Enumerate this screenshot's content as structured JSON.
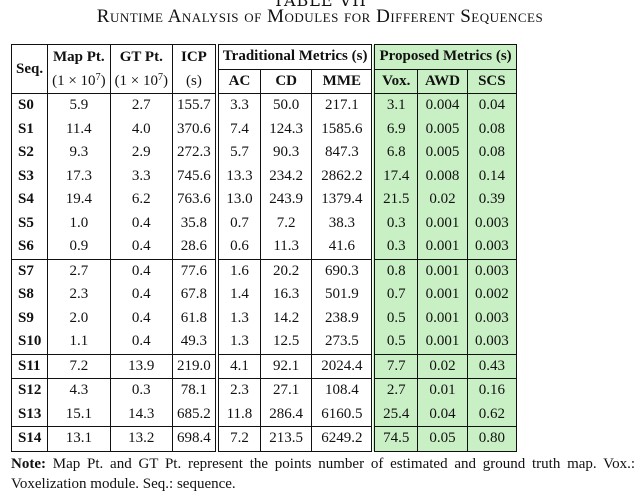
{
  "table_label": "TABLE VII",
  "caption": "Runtime Analysis of Modules for Different Sequences",
  "headers": {
    "seq": "Seq.",
    "map_pt": "Map Pt.",
    "map_pt_unit": "(1 × 10",
    "gt_pt": "GT Pt.",
    "gt_pt_unit": "(1 × 10",
    "exp": "7",
    "close": ")",
    "icp": "ICP",
    "icp_unit": "(s)",
    "traditional": "Traditional Metrics (s)",
    "ac": "AC",
    "cd": "CD",
    "mme": "MME",
    "proposed": "Proposed Metrics (s)",
    "vox": "Vox.",
    "awd": "AWD",
    "scs": "SCS"
  },
  "rows": [
    [
      "S0",
      "5.9",
      "2.7",
      "155.7",
      "3.3",
      "50.0",
      "217.1",
      "3.1",
      "0.004",
      "0.04"
    ],
    [
      "S1",
      "11.4",
      "4.0",
      "370.6",
      "7.4",
      "124.3",
      "1585.6",
      "6.9",
      "0.005",
      "0.08"
    ],
    [
      "S2",
      "9.3",
      "2.9",
      "272.3",
      "5.7",
      "90.3",
      "847.3",
      "6.8",
      "0.005",
      "0.08"
    ],
    [
      "S3",
      "17.3",
      "3.3",
      "745.6",
      "13.3",
      "234.2",
      "2862.2",
      "17.4",
      "0.008",
      "0.14"
    ],
    [
      "S4",
      "19.4",
      "6.2",
      "763.6",
      "13.0",
      "243.9",
      "1379.4",
      "21.5",
      "0.02",
      "0.39"
    ],
    [
      "S5",
      "1.0",
      "0.4",
      "35.8",
      "0.7",
      "7.2",
      "38.3",
      "0.3",
      "0.001",
      "0.003"
    ],
    [
      "S6",
      "0.9",
      "0.4",
      "28.6",
      "0.6",
      "11.3",
      "41.6",
      "0.3",
      "0.001",
      "0.003"
    ],
    [
      "S7",
      "2.7",
      "0.4",
      "77.6",
      "1.6",
      "20.2",
      "690.3",
      "0.8",
      "0.001",
      "0.003"
    ],
    [
      "S8",
      "2.3",
      "0.4",
      "67.8",
      "1.4",
      "16.3",
      "501.9",
      "0.7",
      "0.001",
      "0.002"
    ],
    [
      "S9",
      "2.0",
      "0.4",
      "61.8",
      "1.3",
      "14.2",
      "238.9",
      "0.5",
      "0.001",
      "0.003"
    ],
    [
      "S10",
      "1.1",
      "0.4",
      "49.3",
      "1.3",
      "12.5",
      "273.5",
      "0.5",
      "0.001",
      "0.003"
    ],
    [
      "S11",
      "7.2",
      "13.9",
      "219.0",
      "4.1",
      "92.1",
      "2024.4",
      "7.7",
      "0.02",
      "0.43"
    ],
    [
      "S12",
      "4.3",
      "0.3",
      "78.1",
      "2.3",
      "27.1",
      "108.4",
      "2.7",
      "0.01",
      "0.16"
    ],
    [
      "S13",
      "15.1",
      "14.3",
      "685.2",
      "11.8",
      "286.4",
      "6160.5",
      "25.4",
      "0.04",
      "0.62"
    ],
    [
      "S14",
      "13.1",
      "13.2",
      "698.4",
      "7.2",
      "213.5",
      "6249.2",
      "74.5",
      "0.05",
      "0.80"
    ]
  ],
  "note_label": "Note:",
  "note_text": " Map Pt. and GT Pt. represent the points number of estimated and ground truth map. Vox.: Voxelization module. Seq.: sequence.",
  "colors": {
    "proposed_bg": "#c9f0c4"
  }
}
